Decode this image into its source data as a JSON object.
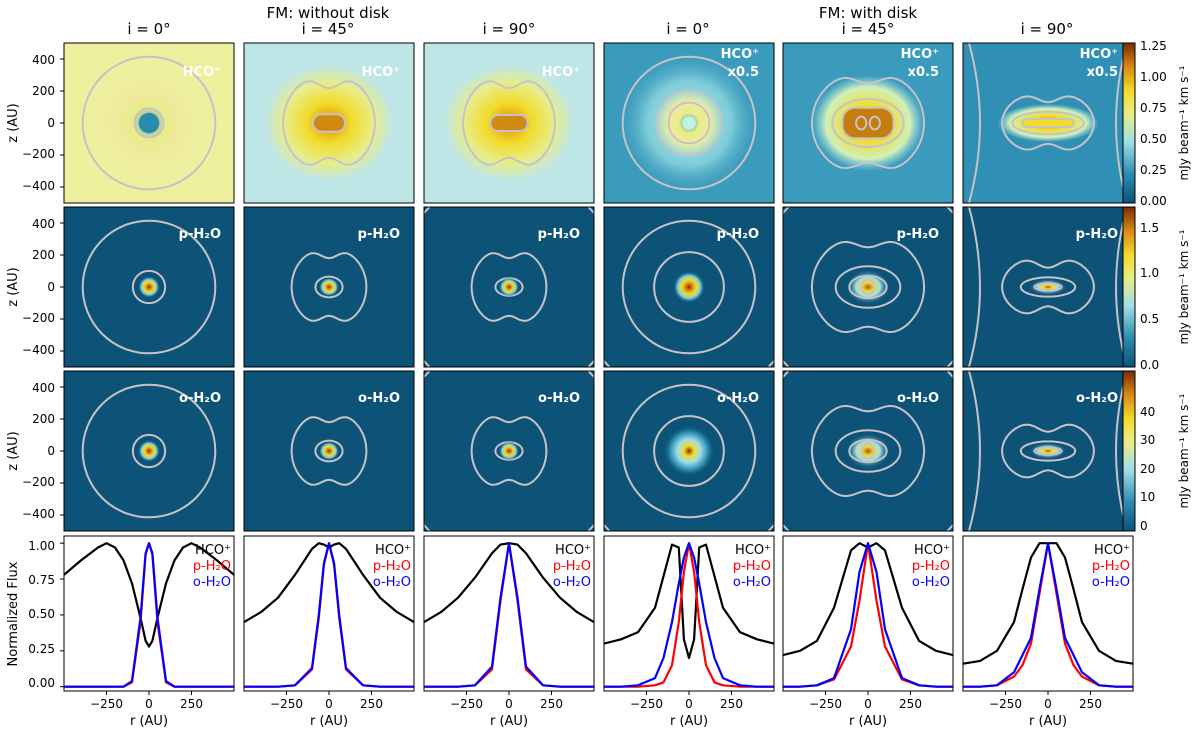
{
  "chart_data": {
    "type": "image-grid-with-line-profiles",
    "group_titles": [
      "FM: without disk",
      "FM: with disk"
    ],
    "columns": [
      {
        "group": 0,
        "title": "i = 0°"
      },
      {
        "group": 0,
        "title": "i = 45°"
      },
      {
        "group": 0,
        "title": "i = 90°"
      },
      {
        "group": 1,
        "title": "i = 0°"
      },
      {
        "group": 1,
        "title": "i = 45°"
      },
      {
        "group": 1,
        "title": "i = 90°"
      }
    ],
    "map_rows": [
      {
        "species": "HCO+",
        "labels": [
          "HCO⁺",
          "HCO⁺",
          "HCO⁺",
          "HCO⁺\nx0.5",
          "HCO⁺\nx0.5",
          "HCO⁺\nx0.5"
        ],
        "colorbar": {
          "label": "mJy beam⁻¹ km s⁻¹",
          "range": [
            0,
            1.25
          ],
          "ticks": [
            "0.00",
            "0.25",
            "0.50",
            "0.75",
            "1.00",
            "1.25"
          ]
        }
      },
      {
        "species": "p-H2O",
        "labels": [
          "p-H₂O",
          "p-H₂O",
          "p-H₂O",
          "p-H₂O",
          "p-H₂O",
          "p-H₂O"
        ],
        "colorbar": {
          "label": "mJy beam⁻¹ km s⁻¹",
          "range": [
            0,
            1.8
          ],
          "ticks": [
            "0.0",
            "0.5",
            "1.0",
            "1.5"
          ]
        }
      },
      {
        "species": "o-H2O",
        "labels": [
          "o-H₂O",
          "o-H₂O",
          "o-H₂O",
          "o-H₂O",
          "o-H₂O",
          "o-H₂O"
        ],
        "colorbar": {
          "label": "mJy beam⁻¹ km s⁻¹",
          "range": [
            0,
            42
          ],
          "ticks": [
            "0",
            "10",
            "20",
            "30",
            "40"
          ]
        }
      }
    ],
    "map_axes": {
      "ylabel": "z (AU)",
      "range": [
        -500,
        500
      ],
      "yticks": [
        "400",
        "200",
        "0",
        "−200",
        "−400"
      ],
      "ytick_values": [
        400,
        200,
        0,
        -200,
        -400
      ]
    },
    "profile_axes": {
      "ylabel": "Normalized Flux",
      "xlabel": "r (AU)",
      "xlim": [
        -500,
        500
      ],
      "ylim": [
        -0.03,
        1.05
      ],
      "xticks": [
        "−250",
        "0",
        "250"
      ],
      "xtick_values": [
        -250,
        0,
        250
      ],
      "yticks": [
        "0.00",
        "0.25",
        "0.50",
        "0.75",
        "1.00"
      ],
      "ytick_values": [
        0,
        0.25,
        0.5,
        0.75,
        1.0
      ]
    },
    "legend": [
      {
        "label": "HCO⁺",
        "color": "#000000"
      },
      {
        "label": "p-H₂O",
        "color": "#ff0000"
      },
      {
        "label": "o-H₂O",
        "color": "#0000ff"
      }
    ],
    "profiles": [
      {
        "x": [
          -500,
          -400,
          -300,
          -250,
          -200,
          -150,
          -100,
          -50,
          -20,
          0,
          20,
          50,
          100,
          150,
          200,
          250,
          300,
          400,
          500
        ],
        "HCO+": [
          0.78,
          0.88,
          0.97,
          1.0,
          0.97,
          0.88,
          0.72,
          0.48,
          0.32,
          0.28,
          0.32,
          0.48,
          0.72,
          0.88,
          0.97,
          1.0,
          0.97,
          0.88,
          0.78
        ],
        "p-H2O": [
          0,
          0,
          0,
          0,
          0,
          0,
          0.03,
          0.45,
          0.92,
          1.0,
          0.92,
          0.45,
          0.03,
          0,
          0,
          0,
          0,
          0,
          0
        ],
        "o-H2O": [
          0,
          0,
          0,
          0,
          0,
          0,
          0.04,
          0.48,
          0.93,
          1.0,
          0.93,
          0.48,
          0.04,
          0,
          0,
          0,
          0,
          0,
          0
        ]
      },
      {
        "x": [
          -500,
          -400,
          -300,
          -200,
          -100,
          -60,
          -30,
          0,
          30,
          60,
          100,
          200,
          300,
          400,
          500
        ],
        "HCO+": [
          0.45,
          0.52,
          0.62,
          0.78,
          0.96,
          1.0,
          0.99,
          0.97,
          0.99,
          1.0,
          0.96,
          0.78,
          0.62,
          0.52,
          0.45
        ],
        "p-H2O": [
          0,
          0,
          0,
          0.01,
          0.12,
          0.48,
          0.85,
          1.0,
          0.85,
          0.48,
          0.12,
          0.01,
          0,
          0,
          0
        ],
        "o-H2O": [
          0,
          0,
          0,
          0.01,
          0.13,
          0.5,
          0.86,
          1.0,
          0.86,
          0.5,
          0.13,
          0.01,
          0,
          0,
          0
        ]
      },
      {
        "x": [
          -500,
          -400,
          -300,
          -200,
          -100,
          -50,
          0,
          50,
          100,
          200,
          300,
          400,
          500
        ],
        "HCO+": [
          0.45,
          0.52,
          0.62,
          0.76,
          0.93,
          0.99,
          1.0,
          0.99,
          0.93,
          0.76,
          0.62,
          0.52,
          0.45
        ],
        "p-H2O": [
          0,
          0,
          0,
          0.01,
          0.12,
          0.6,
          1.0,
          0.6,
          0.12,
          0.01,
          0,
          0,
          0
        ],
        "o-H2O": [
          0,
          0,
          0,
          0.01,
          0.14,
          0.62,
          1.0,
          0.62,
          0.14,
          0.01,
          0,
          0,
          0
        ]
      },
      {
        "x": [
          -500,
          -400,
          -300,
          -200,
          -150,
          -100,
          -60,
          -30,
          0,
          30,
          60,
          100,
          150,
          200,
          300,
          400,
          500
        ],
        "HCO+": [
          0.3,
          0.33,
          0.38,
          0.55,
          0.77,
          0.99,
          0.97,
          0.33,
          0.2,
          0.33,
          0.97,
          0.99,
          0.77,
          0.55,
          0.38,
          0.33,
          0.3
        ],
        "p-H2O": [
          0,
          0,
          0,
          0.01,
          0.03,
          0.15,
          0.45,
          0.8,
          1.0,
          0.8,
          0.45,
          0.15,
          0.03,
          0.01,
          0,
          0,
          0
        ],
        "o-H2O": [
          0,
          0,
          0.01,
          0.06,
          0.2,
          0.45,
          0.72,
          0.9,
          1.0,
          0.9,
          0.72,
          0.45,
          0.2,
          0.06,
          0.01,
          0,
          0
        ]
      },
      {
        "x": [
          -500,
          -400,
          -300,
          -200,
          -100,
          -50,
          0,
          50,
          100,
          200,
          300,
          400,
          500
        ],
        "HCO+": [
          0.22,
          0.25,
          0.32,
          0.55,
          0.95,
          1.0,
          0.97,
          1.0,
          0.95,
          0.55,
          0.32,
          0.25,
          0.22
        ],
        "p-H2O": [
          0,
          0,
          0.01,
          0.05,
          0.28,
          0.6,
          1.0,
          0.6,
          0.28,
          0.05,
          0.01,
          0,
          0
        ],
        "o-H2O": [
          0,
          0,
          0.01,
          0.06,
          0.4,
          0.8,
          1.0,
          0.8,
          0.4,
          0.06,
          0.01,
          0,
          0
        ]
      },
      {
        "x": [
          -500,
          -400,
          -300,
          -200,
          -150,
          -100,
          -50,
          0,
          50,
          100,
          150,
          200,
          300,
          400,
          500
        ],
        "HCO+": [
          0.16,
          0.18,
          0.25,
          0.45,
          0.68,
          0.9,
          1.0,
          1.0,
          1.0,
          0.9,
          0.68,
          0.45,
          0.25,
          0.18,
          0.16
        ],
        "p-H2O": [
          0,
          0,
          0.01,
          0.07,
          0.15,
          0.3,
          0.65,
          1.0,
          0.65,
          0.3,
          0.15,
          0.07,
          0.01,
          0,
          0
        ],
        "o-H2O": [
          0,
          0,
          0.01,
          0.1,
          0.22,
          0.34,
          0.68,
          1.0,
          0.68,
          0.34,
          0.22,
          0.1,
          0.01,
          0,
          0
        ]
      }
    ]
  }
}
